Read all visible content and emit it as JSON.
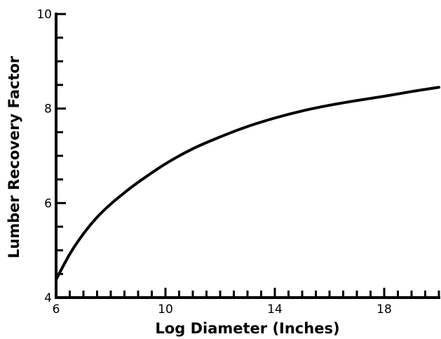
{
  "chart_data": {
    "type": "line",
    "title": "",
    "xlabel": "Log Diameter (Inches)",
    "ylabel": "Lumber Recovery Factor",
    "xlim": [
      6,
      20
    ],
    "ylim": [
      4,
      10
    ],
    "x_ticks": [
      6,
      10,
      14,
      18
    ],
    "x_tick_labels": [
      "6",
      "10",
      "14",
      "18"
    ],
    "y_ticks": [
      4,
      6,
      8,
      10
    ],
    "y_tick_labels": [
      "4",
      "6",
      "8",
      "10"
    ],
    "x_minor_step": 0.5,
    "y_minor_step": 0.5,
    "grid": false,
    "series": [
      {
        "x": [
          6.0,
          6.5,
          7.0,
          7.5,
          8.0,
          8.5,
          9.0,
          10.0,
          11.0,
          12.0,
          13.0,
          14.0,
          15.0,
          16.0,
          17.0,
          18.0,
          19.0,
          20.0
        ],
        "values": [
          4.38,
          4.92,
          5.35,
          5.7,
          5.98,
          6.22,
          6.44,
          6.83,
          7.15,
          7.4,
          7.62,
          7.8,
          7.95,
          8.07,
          8.17,
          8.26,
          8.36,
          8.45
        ]
      }
    ]
  }
}
